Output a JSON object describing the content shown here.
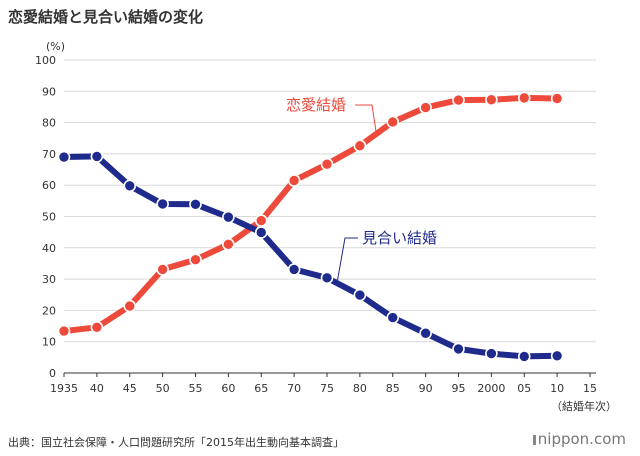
{
  "title": "恋愛結婚と見合い結婚の変化",
  "source": "出典：国立社会保障・人口問題研究所「2015年出生動向基本調査」",
  "brand": "nippon.com",
  "colors": {
    "love": "#ee4a3c",
    "arranged": "#1e2a8c",
    "grid": "#d8d8d8",
    "axis": "#333333"
  },
  "chart_data": {
    "type": "line",
    "ylabel": "(%)",
    "xlabel": "（結婚年次）",
    "ylim": [
      0,
      100
    ],
    "y_ticks": [
      0,
      10,
      20,
      30,
      40,
      50,
      60,
      70,
      80,
      90,
      100
    ],
    "x_tick_labels": [
      "1935",
      "40",
      "45",
      "50",
      "55",
      "60",
      "65",
      "70",
      "75",
      "80",
      "85",
      "90",
      "95",
      "2000",
      "05",
      "10",
      "15"
    ],
    "x": [
      1935,
      1940,
      1945,
      1950,
      1955,
      1960,
      1965,
      1970,
      1975,
      1980,
      1985,
      1990,
      1995,
      2000,
      2005,
      2010
    ],
    "xlim": [
      1935,
      2015
    ],
    "series": [
      {
        "name": "恋愛結婚",
        "color_key": "love",
        "values": [
          13.4,
          14.6,
          21.4,
          33.1,
          36.2,
          41.1,
          48.7,
          61.5,
          66.7,
          72.6,
          80.2,
          84.8,
          87.2,
          87.3,
          87.9,
          87.7
        ]
      },
      {
        "name": "見合い結婚",
        "color_key": "arranged",
        "values": [
          69.0,
          69.2,
          59.8,
          54.0,
          53.9,
          49.8,
          44.9,
          33.1,
          30.4,
          24.9,
          17.7,
          12.7,
          7.7,
          6.2,
          5.3,
          5.5
        ]
      }
    ]
  }
}
